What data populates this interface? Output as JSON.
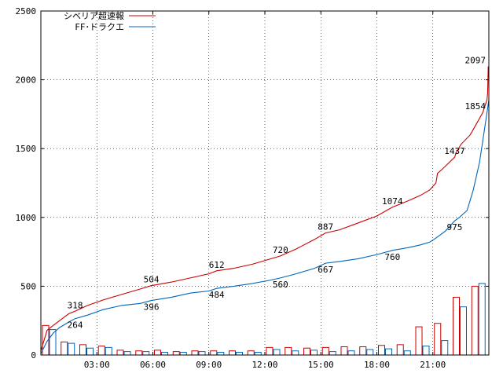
{
  "chart_data": {
    "type": "line",
    "title": "",
    "xlabel": "",
    "ylabel": "",
    "xlim": [
      0,
      1440
    ],
    "ylim": [
      0,
      2500
    ],
    "y_ticks": [
      0,
      500,
      1000,
      1500,
      2000,
      2500
    ],
    "x_ticks": [
      {
        "label": "03:00",
        "minute": 180
      },
      {
        "label": "06:00",
        "minute": 360
      },
      {
        "label": "09:00",
        "minute": 540
      },
      {
        "label": "12:00",
        "minute": 720
      },
      {
        "label": "15:00",
        "minute": 900
      },
      {
        "label": "18:00",
        "minute": 1080
      },
      {
        "label": "21:00",
        "minute": 1260
      }
    ],
    "grid": true,
    "legend_position": "top-left",
    "series": [
      {
        "name": "シベリア超速報",
        "color": "#cc0000",
        "cumulative": [
          [
            0,
            30
          ],
          [
            20,
            180
          ],
          [
            40,
            215
          ],
          [
            60,
            250
          ],
          [
            90,
            300
          ],
          [
            110,
            318
          ],
          [
            150,
            360
          ],
          [
            200,
            400
          ],
          [
            260,
            440
          ],
          [
            320,
            480
          ],
          [
            355,
            504
          ],
          [
            420,
            530
          ],
          [
            480,
            560
          ],
          [
            540,
            590
          ],
          [
            565,
            612
          ],
          [
            620,
            630
          ],
          [
            680,
            660
          ],
          [
            740,
            700
          ],
          [
            770,
            720
          ],
          [
            820,
            770
          ],
          [
            880,
            840
          ],
          [
            915,
            887
          ],
          [
            960,
            910
          ],
          [
            1020,
            960
          ],
          [
            1080,
            1010
          ],
          [
            1130,
            1074
          ],
          [
            1180,
            1120
          ],
          [
            1220,
            1160
          ],
          [
            1250,
            1200
          ],
          [
            1270,
            1250
          ],
          [
            1275,
            1320
          ],
          [
            1290,
            1350
          ],
          [
            1330,
            1437
          ],
          [
            1335,
            1470
          ],
          [
            1350,
            1530
          ],
          [
            1380,
            1600
          ],
          [
            1400,
            1680
          ],
          [
            1420,
            1760
          ],
          [
            1434,
            1854
          ],
          [
            1436,
            1900
          ],
          [
            1438,
            2097
          ]
        ],
        "annotations": [
          [
            110,
            318
          ],
          [
            355,
            504
          ],
          [
            565,
            612
          ],
          [
            770,
            720
          ],
          [
            915,
            887
          ],
          [
            1130,
            1074
          ],
          [
            1330,
            1437
          ],
          [
            1438,
            2097
          ]
        ],
        "annotation_labels": [
          "318",
          "504",
          "612",
          "720",
          "887",
          "1074",
          "1437",
          "2097"
        ],
        "bars": {
          "categories": [
            "00",
            "01",
            "02",
            "03",
            "04",
            "05",
            "06",
            "07",
            "08",
            "09",
            "10",
            "11",
            "12",
            "13",
            "14",
            "15",
            "16",
            "17",
            "18",
            "19",
            "20",
            "21",
            "22",
            "23"
          ],
          "values": [
            215,
            95,
            75,
            65,
            35,
            30,
            35,
            25,
            30,
            30,
            30,
            30,
            55,
            55,
            50,
            55,
            60,
            60,
            70,
            75,
            205,
            230,
            420,
            500
          ]
        }
      },
      {
        "name": "FF･ドラクエ",
        "color": "#0066bb",
        "cumulative": [
          [
            0,
            10
          ],
          [
            20,
            100
          ],
          [
            40,
            160
          ],
          [
            60,
            200
          ],
          [
            90,
            240
          ],
          [
            110,
            264
          ],
          [
            150,
            290
          ],
          [
            200,
            330
          ],
          [
            260,
            360
          ],
          [
            320,
            375
          ],
          [
            355,
            396
          ],
          [
            420,
            420
          ],
          [
            480,
            450
          ],
          [
            540,
            465
          ],
          [
            565,
            484
          ],
          [
            620,
            500
          ],
          [
            680,
            520
          ],
          [
            740,
            545
          ],
          [
            770,
            560
          ],
          [
            820,
            590
          ],
          [
            880,
            630
          ],
          [
            915,
            667
          ],
          [
            960,
            680
          ],
          [
            1020,
            700
          ],
          [
            1080,
            730
          ],
          [
            1130,
            760
          ],
          [
            1180,
            780
          ],
          [
            1220,
            800
          ],
          [
            1250,
            820
          ],
          [
            1270,
            850
          ],
          [
            1300,
            900
          ],
          [
            1330,
            975
          ],
          [
            1345,
            1000
          ],
          [
            1370,
            1050
          ],
          [
            1390,
            1200
          ],
          [
            1410,
            1400
          ],
          [
            1420,
            1550
          ],
          [
            1430,
            1700
          ],
          [
            1440,
            1854
          ]
        ],
        "annotations": [
          [
            110,
            264
          ],
          [
            355,
            396
          ],
          [
            565,
            484
          ],
          [
            770,
            560
          ],
          [
            915,
            667
          ],
          [
            1130,
            760
          ],
          [
            1330,
            975
          ],
          [
            1430,
            1854
          ]
        ],
        "annotation_labels": [
          "264",
          "396",
          "484",
          "560",
          "667",
          "760",
          "975",
          "1854"
        ],
        "bars": {
          "categories": [
            "00",
            "01",
            "02",
            "03",
            "04",
            "05",
            "06",
            "07",
            "08",
            "09",
            "10",
            "11",
            "12",
            "13",
            "14",
            "15",
            "16",
            "17",
            "18",
            "19",
            "20",
            "21",
            "22",
            "23"
          ],
          "values": [
            185,
            85,
            50,
            55,
            25,
            25,
            20,
            20,
            25,
            20,
            20,
            20,
            40,
            30,
            35,
            25,
            30,
            40,
            45,
            30,
            65,
            105,
            350,
            520
          ]
        }
      }
    ]
  }
}
